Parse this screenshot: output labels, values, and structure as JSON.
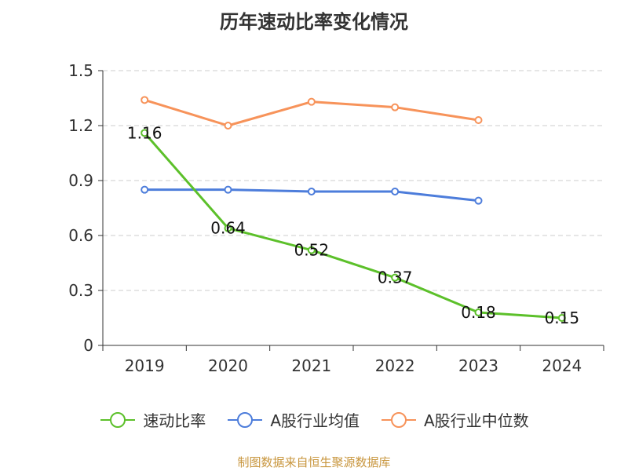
{
  "title": "历年速动比率变化情况",
  "source": "制图数据来自恒生聚源数据库",
  "colors": {
    "text": "#333333",
    "axis": "#333333",
    "grid": "#cccccc",
    "source": "#c8963e"
  },
  "chart_data": {
    "type": "line",
    "title": "历年速动比率变化情况",
    "categories": [
      "2019",
      "2020",
      "2021",
      "2022",
      "2023",
      "2024"
    ],
    "ylim": [
      0,
      1.5
    ],
    "yticks": [
      "0",
      "0.3",
      "0.6",
      "0.9",
      "1.2",
      "1.5"
    ],
    "grid": true,
    "legend_position": "bottom",
    "series": [
      {
        "name": "速动比率",
        "color": "#5cc02a",
        "values": [
          1.16,
          0.64,
          0.52,
          0.37,
          0.18,
          0.15
        ],
        "labels": [
          "1.16",
          "0.64",
          "0.52",
          "0.37",
          "0.18",
          "0.15"
        ]
      },
      {
        "name": "A股行业均值",
        "color": "#4d7ddb",
        "values": [
          0.85,
          0.85,
          0.84,
          0.84,
          0.79,
          null
        ]
      },
      {
        "name": "A股行业中位数",
        "color": "#f7935a",
        "values": [
          1.34,
          1.2,
          1.33,
          1.3,
          1.23,
          null
        ]
      }
    ]
  }
}
